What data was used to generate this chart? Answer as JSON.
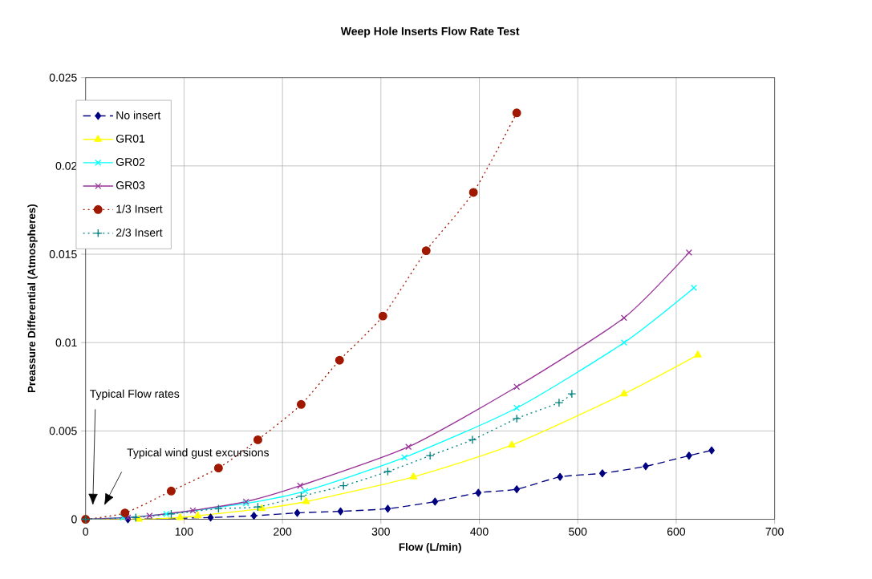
{
  "chart_data": {
    "type": "line",
    "title": "Weep Hole Inserts Flow Rate Test",
    "xlabel": "Flow (L/min)",
    "ylabel": "Preassure Differential (Atmospheres)",
    "xlim": [
      0,
      700
    ],
    "xticks": [
      0,
      100,
      200,
      300,
      400,
      500,
      600,
      700
    ],
    "ylim": [
      0,
      0.025
    ],
    "yticks": [
      0,
      0.005,
      0.01,
      0.015,
      0.02,
      0.025
    ],
    "grid": true,
    "legend": "top left",
    "series": [
      {
        "name": "No insert",
        "color": "#000080",
        "marker": "diamond",
        "line_style": "dashed",
        "x": [
          0,
          43,
          127,
          171,
          215,
          259,
          307,
          355,
          399,
          438,
          482,
          525,
          569,
          613,
          636
        ],
        "values": [
          0,
          0,
          0.0001,
          0.0002,
          0.00036,
          0.00045,
          0.0006,
          0.001,
          0.0015,
          0.0017,
          0.0024,
          0.0026,
          0.003,
          0.0036,
          0.0039
        ]
      },
      {
        "name": "GR01",
        "color": "#ffff00",
        "marker": "triangle",
        "line_style": "solid",
        "x": [
          0,
          54,
          96,
          114,
          179,
          224,
          333,
          433,
          547,
          622
        ],
        "values": [
          0,
          0,
          0.0001,
          0.0002,
          0.0006,
          0.001,
          0.0024,
          0.0042,
          0.0071,
          0.0093
        ]
      },
      {
        "name": "GR02",
        "color": "#00ffff",
        "marker": "cross",
        "line_style": "solid",
        "x": [
          0,
          38,
          82,
          163,
          223,
          324,
          438,
          547,
          618
        ],
        "values": [
          0,
          0.0001,
          0.0003,
          0.0009,
          0.0016,
          0.0035,
          0.0063,
          0.01,
          0.0131
        ]
      },
      {
        "name": "GR03",
        "color": "#993399",
        "marker": "cross",
        "line_style": "solid",
        "x": [
          0,
          43,
          65,
          109,
          163,
          218,
          328,
          438,
          547,
          613
        ],
        "values": [
          0,
          0.0001,
          0.0002,
          0.0005,
          0.001,
          0.0019,
          0.0041,
          0.0075,
          0.0114,
          0.0151
        ]
      },
      {
        "name": "1/3 Insert",
        "color": "#a01800",
        "marker": "circle",
        "line_style": "dotted",
        "x": [
          0,
          40,
          87,
          135,
          175,
          219,
          258,
          302,
          346,
          394,
          438
        ],
        "values": [
          0,
          0.00036,
          0.0016,
          0.0029,
          0.0045,
          0.0065,
          0.009,
          0.0115,
          0.0152,
          0.0185,
          0.023
        ]
      },
      {
        "name": "2/3 Insert",
        "color": "#008080",
        "marker": "plus",
        "line_style": "dotted",
        "x": [
          0,
          51,
          87,
          135,
          175,
          219,
          262,
          307,
          350,
          393,
          438,
          481,
          494
        ],
        "values": [
          0,
          0.0001,
          0.0003,
          0.0006,
          0.0007,
          0.0013,
          0.0019,
          0.0027,
          0.0036,
          0.0045,
          0.0057,
          0.0066,
          0.0071
        ]
      }
    ],
    "annotations": [
      "Typical Flow rates",
      "Typical wind gust excursions"
    ]
  }
}
